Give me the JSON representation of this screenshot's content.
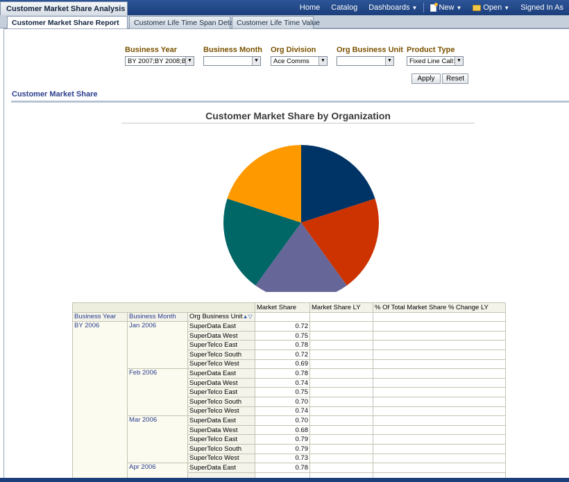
{
  "app": {
    "title": "Customer Market Share Analysis"
  },
  "topnav": {
    "home": "Home",
    "catalog": "Catalog",
    "dashboards": "Dashboards",
    "new": "New",
    "open": "Open",
    "signed_in": "Signed In As"
  },
  "tabs": [
    {
      "label": "Customer Market Share Report",
      "active": true
    },
    {
      "label": "Customer Life Time Span Detail",
      "active": false
    },
    {
      "label": "Customer Life Time Value",
      "active": false
    }
  ],
  "prompts": {
    "business_year": {
      "label": "Business Year",
      "value": "BY 2007;BY 2008;B"
    },
    "business_month": {
      "label": "Business Month",
      "value": ""
    },
    "org_division": {
      "label": "Org Division",
      "value": "Ace Comms"
    },
    "org_business_unit": {
      "label": "Org Business Unit",
      "value": ""
    },
    "product_type": {
      "label": "Product Type",
      "value": "Fixed Line Call:f"
    },
    "apply": "Apply",
    "reset": "Reset"
  },
  "section": {
    "title": "Customer Market Share"
  },
  "chart_data": {
    "type": "pie",
    "title": "Customer Market Share by Organization",
    "values": [
      0.2,
      0.2,
      0.2,
      0.2,
      0.2
    ],
    "colors": [
      "#003366",
      "#cc3300",
      "#666699",
      "#006666",
      "#ff9900"
    ]
  },
  "table": {
    "headers": {
      "business_year": "Business Year",
      "business_month": "Business Month",
      "org_business_unit": "Org Business Unit",
      "market_share": "Market Share",
      "market_share_ly": "Market Share LY",
      "pct_change": "% Of Total Market Share % Change LY"
    },
    "year": "BY 2006",
    "months": [
      {
        "month": "Jan 2006",
        "rows": [
          {
            "unit": "SuperData East",
            "value": "0.72"
          },
          {
            "unit": "SuperData West",
            "value": "0.75"
          },
          {
            "unit": "SuperTelco East",
            "value": "0.78"
          },
          {
            "unit": "SuperTelco South",
            "value": "0.72"
          },
          {
            "unit": "SuperTelco West",
            "value": "0.69"
          }
        ]
      },
      {
        "month": "Feb 2006",
        "rows": [
          {
            "unit": "SuperData East",
            "value": "0.78"
          },
          {
            "unit": "SuperData West",
            "value": "0.74"
          },
          {
            "unit": "SuperTelco East",
            "value": "0.75"
          },
          {
            "unit": "SuperTelco South",
            "value": "0.70"
          },
          {
            "unit": "SuperTelco West",
            "value": "0.74"
          }
        ]
      },
      {
        "month": "Mar 2006",
        "rows": [
          {
            "unit": "SuperData East",
            "value": "0.70"
          },
          {
            "unit": "SuperData West",
            "value": "0.68"
          },
          {
            "unit": "SuperTelco East",
            "value": "0.79"
          },
          {
            "unit": "SuperTelco South",
            "value": "0.79"
          },
          {
            "unit": "SuperTelco West",
            "value": "0.73"
          }
        ]
      },
      {
        "month": "Apr 2006",
        "rows": [
          {
            "unit": "SuperData East",
            "value": "0.78"
          }
        ]
      }
    ]
  }
}
